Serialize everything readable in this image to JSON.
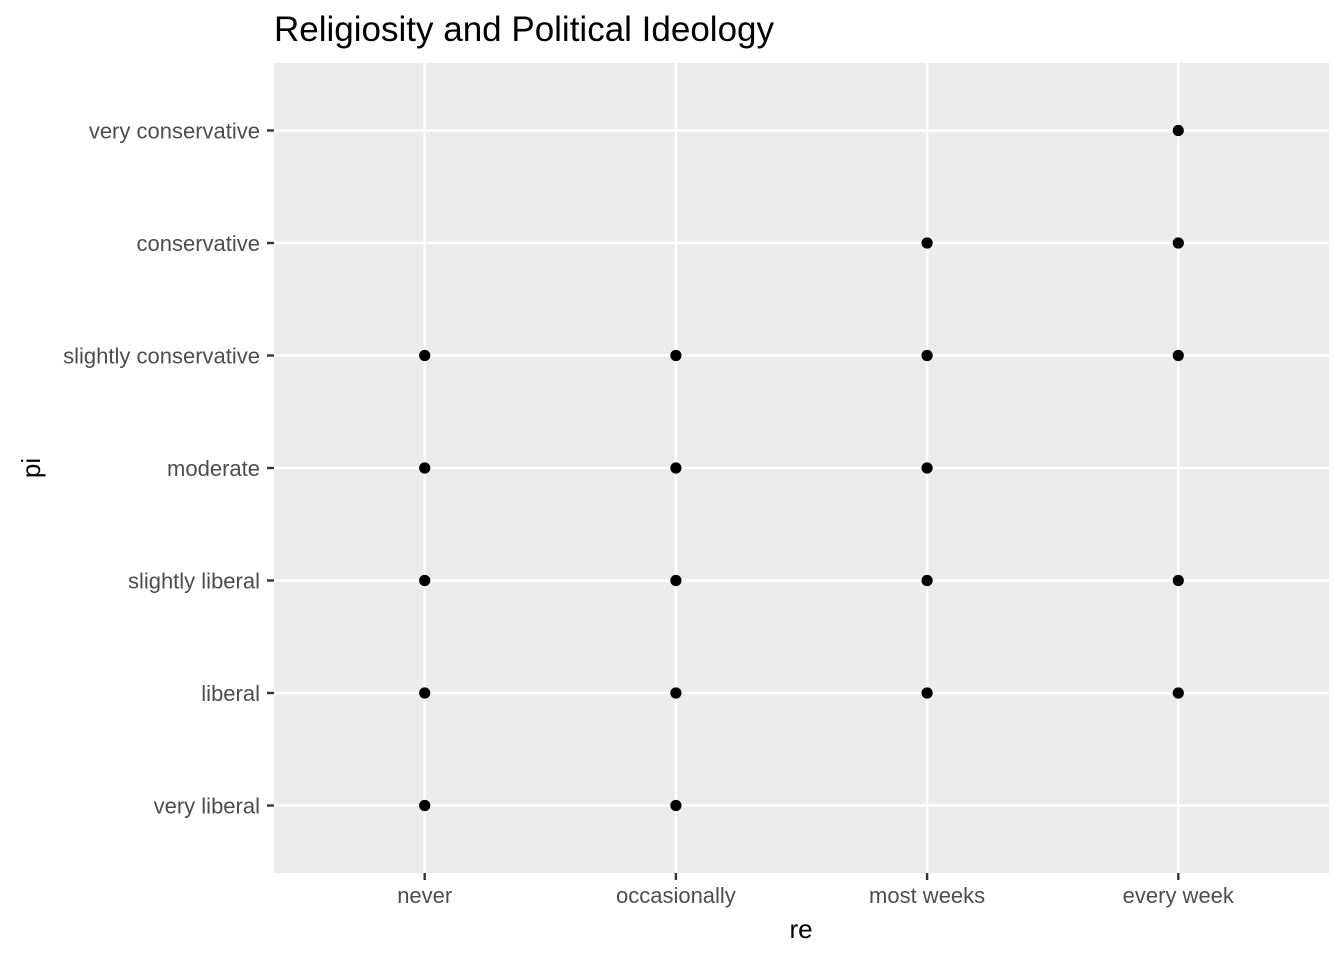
{
  "chart_data": {
    "type": "scatter",
    "title": "Religiosity and Political Ideology",
    "xlabel": "re",
    "ylabel": "pi",
    "x_categories": [
      "never",
      "occasionally",
      "most weeks",
      "every week"
    ],
    "y_categories": [
      "very liberal",
      "liberal",
      "slightly liberal",
      "moderate",
      "slightly conservative",
      "conservative",
      "very conservative"
    ],
    "points": [
      {
        "x": "never",
        "y": "very liberal"
      },
      {
        "x": "never",
        "y": "liberal"
      },
      {
        "x": "never",
        "y": "slightly liberal"
      },
      {
        "x": "never",
        "y": "moderate"
      },
      {
        "x": "never",
        "y": "slightly conservative"
      },
      {
        "x": "occasionally",
        "y": "very liberal"
      },
      {
        "x": "occasionally",
        "y": "liberal"
      },
      {
        "x": "occasionally",
        "y": "slightly liberal"
      },
      {
        "x": "occasionally",
        "y": "moderate"
      },
      {
        "x": "occasionally",
        "y": "slightly conservative"
      },
      {
        "x": "most weeks",
        "y": "liberal"
      },
      {
        "x": "most weeks",
        "y": "slightly liberal"
      },
      {
        "x": "most weeks",
        "y": "moderate"
      },
      {
        "x": "most weeks",
        "y": "slightly conservative"
      },
      {
        "x": "most weeks",
        "y": "conservative"
      },
      {
        "x": "every week",
        "y": "liberal"
      },
      {
        "x": "every week",
        "y": "slightly liberal"
      },
      {
        "x": "every week",
        "y": "slightly conservative"
      },
      {
        "x": "every week",
        "y": "conservative"
      },
      {
        "x": "every week",
        "y": "very conservative"
      }
    ],
    "grid": true,
    "legend": "none",
    "colors": {
      "panel_background": "#EBEBEB",
      "grid_line": "#FFFFFF",
      "point": "#000000",
      "tick_label": "#4D4D4D",
      "axis_title": "#000000",
      "tick": "#333333"
    }
  }
}
